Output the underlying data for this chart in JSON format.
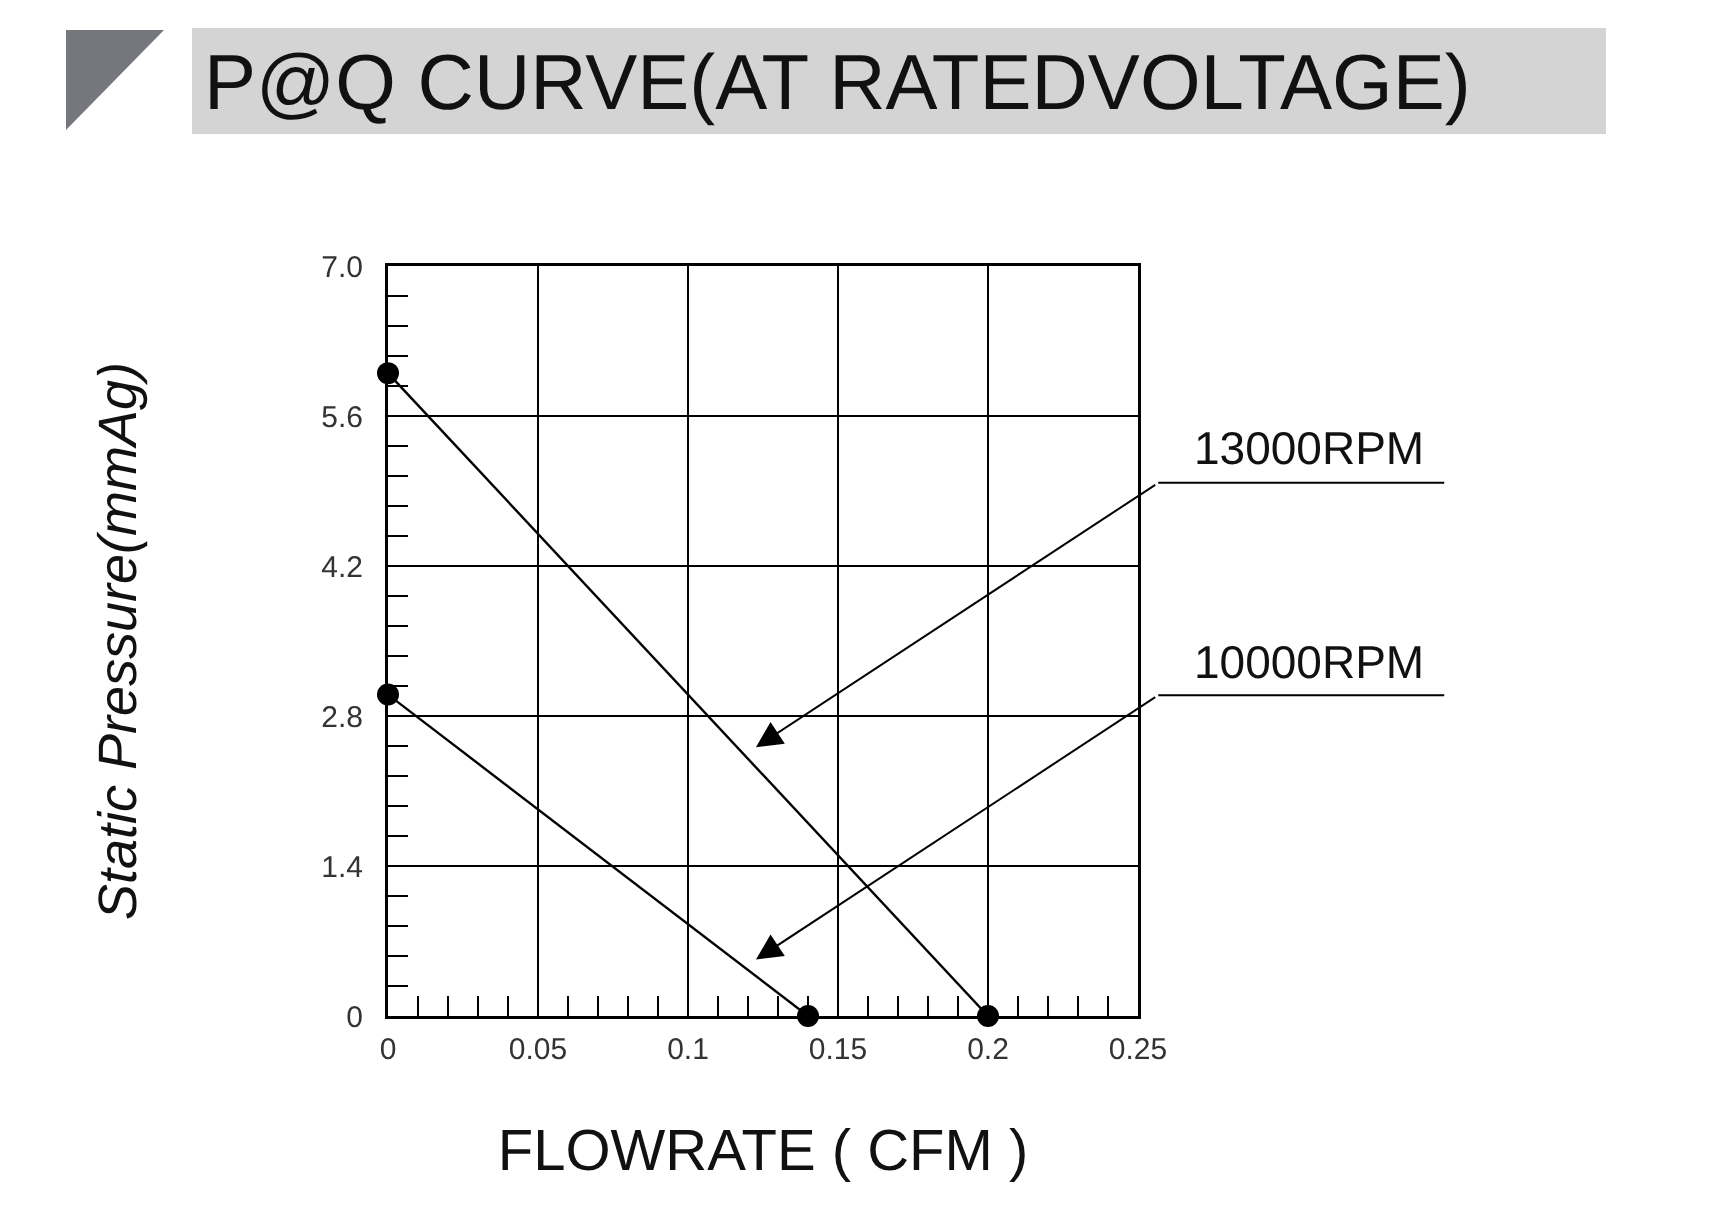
{
  "chart_data": {
    "type": "line",
    "title": "P@Q CURVE(AT RATEDVOLTAGE)",
    "xlabel": "FLOWRATE ( CFM )",
    "ylabel": "Static Pressure(mmAg)",
    "series": [
      {
        "name": "13000RPM",
        "color": "#000000",
        "x": [
          0,
          0.2
        ],
        "values": [
          6.0,
          0
        ]
      },
      {
        "name": "10000RPM",
        "color": "#000000",
        "x": [
          0,
          0.14
        ],
        "values": [
          3.0,
          0
        ]
      }
    ],
    "xlim": [
      0,
      0.25
    ],
    "xticks": [
      0,
      {
        "value": 0.01,
        "label": null
      },
      {
        "value": 0.02,
        "label": null
      },
      {
        "value": 0.03,
        "label": null
      },
      {
        "value": 0.04,
        "label": null
      },
      0.05,
      {
        "value": 0.06,
        "label": null
      },
      {
        "value": 0.07,
        "label": null
      },
      {
        "value": 0.08,
        "label": null
      },
      {
        "value": 0.09,
        "label": null
      },
      0.1,
      {
        "value": 0.11,
        "label": null
      },
      {
        "value": 0.12,
        "label": null
      },
      {
        "value": 0.13,
        "label": null
      },
      {
        "value": 0.14,
        "label": null
      },
      0.15,
      {
        "value": 0.16,
        "label": null
      },
      {
        "value": 0.17,
        "label": null
      },
      {
        "value": 0.18,
        "label": null
      },
      {
        "value": 0.19,
        "label": null
      },
      0.2,
      {
        "value": 0.21,
        "label": null
      },
      {
        "value": 0.22,
        "label": null
      },
      {
        "value": 0.23,
        "label": null
      },
      {
        "value": 0.24,
        "label": null
      },
      0.25
    ],
    "ylim": [
      0,
      7
    ],
    "yticks": [
      0,
      {
        "value": 0.28,
        "label": null
      },
      {
        "value": 0.56,
        "label": null
      },
      {
        "value": 0.84,
        "label": null
      },
      {
        "value": 1.12,
        "label": null
      },
      1.4,
      {
        "value": 1.68,
        "label": null
      },
      {
        "value": 1.96,
        "label": null
      },
      {
        "value": 2.24,
        "label": null
      },
      {
        "value": 2.52,
        "label": null
      },
      2.8,
      {
        "value": 3.08,
        "label": null
      },
      {
        "value": 3.36,
        "label": null
      },
      {
        "value": 3.64,
        "label": null
      },
      {
        "value": 3.92,
        "label": null
      },
      4.2,
      {
        "value": 4.48,
        "label": null
      },
      {
        "value": 4.76,
        "label": null
      },
      {
        "value": 5.04,
        "label": null
      },
      {
        "value": 5.32,
        "label": null
      },
      5.6,
      {
        "value": 5.88,
        "label": null
      },
      {
        "value": 6.16,
        "label": null
      },
      {
        "value": 6.44,
        "label": null
      },
      {
        "value": 6.72,
        "label": null
      },
      {
        "value": 7,
        "label": "7.0"
      }
    ],
    "grid": true,
    "legend": false,
    "marker": "circle",
    "line_style": "solid"
  }
}
